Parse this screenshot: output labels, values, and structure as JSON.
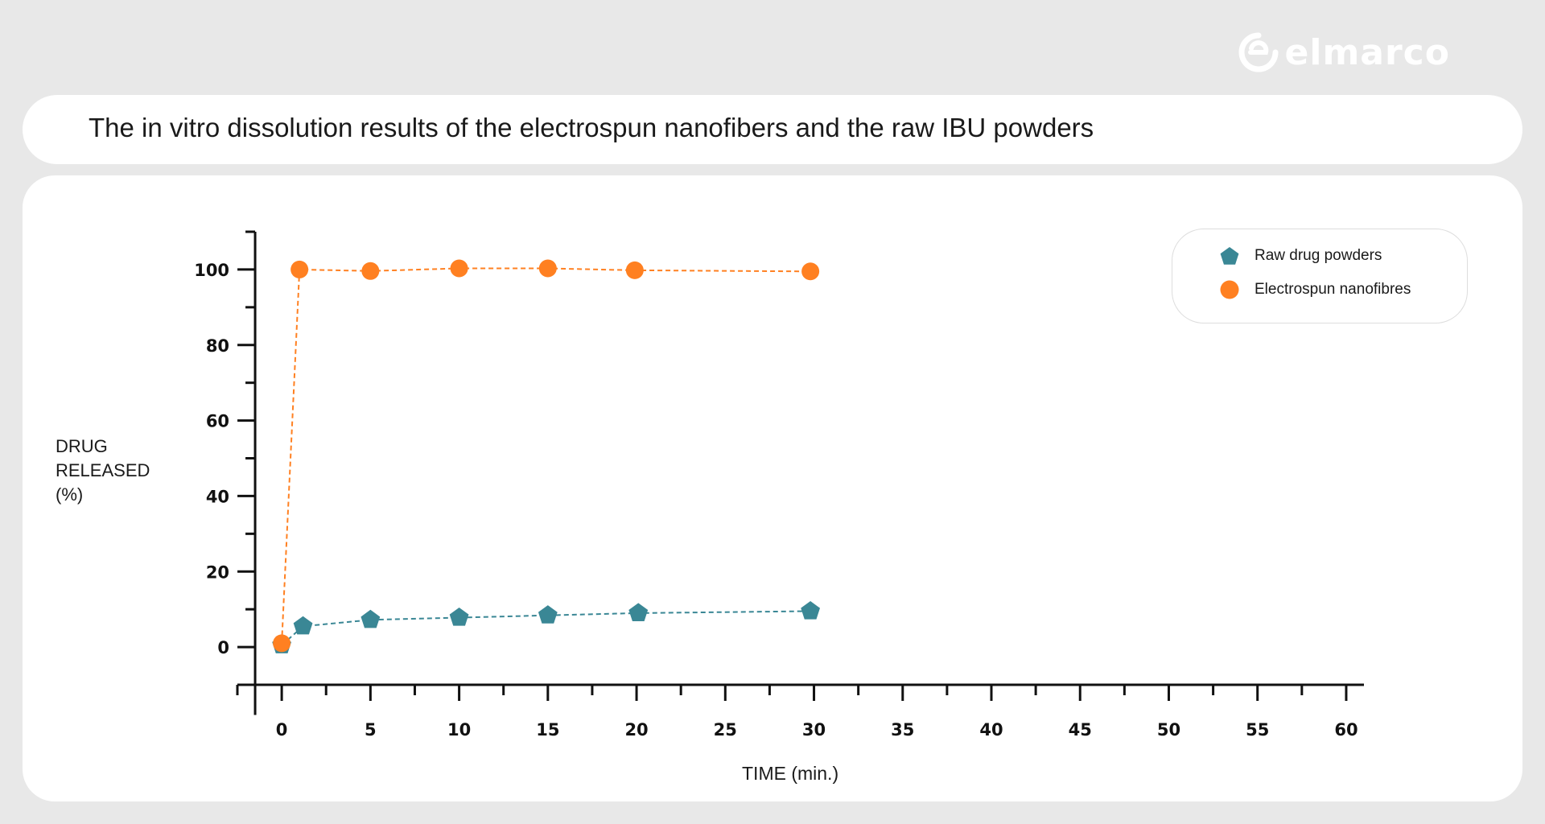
{
  "logo": {
    "text": "elmarco"
  },
  "header": {
    "title": "The in vitro dissolution results of the electrospun nanofibers and the raw IBU powders"
  },
  "colors": {
    "raw": "#3a8795",
    "electrospun": "#ff8021",
    "axis": "#111111"
  },
  "chart_data": {
    "type": "scatter",
    "ylabel_lines": [
      "DRUG",
      "RELEASED",
      "(%)"
    ],
    "xlabel": "TIME (min.)",
    "xlim": [
      -2.5,
      61
    ],
    "ylim": [
      -10,
      110
    ],
    "x_ticks": [
      0,
      5,
      10,
      15,
      20,
      25,
      30,
      35,
      40,
      45,
      50,
      55,
      60
    ],
    "y_ticks": [
      0,
      20,
      40,
      60,
      80,
      100
    ],
    "grid": false,
    "legend_position": "top-right",
    "series": [
      {
        "name": "Raw drug powders",
        "marker": "pentagon",
        "color": "#3a8795",
        "x": [
          0,
          1.2,
          5,
          10,
          15,
          20.1,
          29.8
        ],
        "y": [
          0.5,
          5.5,
          7.2,
          7.8,
          8.4,
          9,
          9.5
        ]
      },
      {
        "name": "Electrospun nanofibres",
        "marker": "circle",
        "color": "#ff8021",
        "x": [
          0,
          1,
          5,
          10,
          15,
          19.9,
          29.8
        ],
        "y": [
          1,
          100,
          99.6,
          100.3,
          100.3,
          99.8,
          99.5
        ]
      }
    ]
  }
}
